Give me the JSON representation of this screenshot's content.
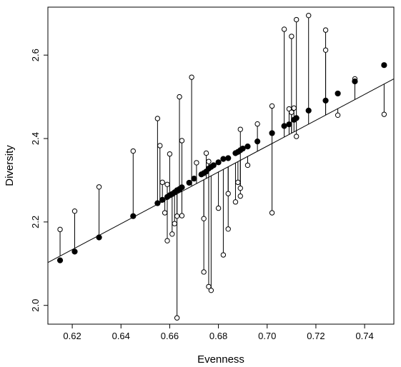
{
  "chart_data": {
    "type": "scatter",
    "xlabel": "Evenness",
    "ylabel": "Diversity",
    "xlim": [
      0.61,
      0.752
    ],
    "ylim": [
      1.955,
      2.715
    ],
    "xticks": [
      "0.62",
      "0.64",
      "0.66",
      "0.68",
      "0.70",
      "0.72",
      "0.74"
    ],
    "yticks": [
      "2.0",
      "2.2",
      "2.4",
      "2.6"
    ],
    "regression_line": {
      "intercept": 0.2115,
      "slope": 3.1005
    },
    "series": [
      {
        "marker": "filled-circle",
        "role": "fitted",
        "x": [
          0.615,
          0.621,
          0.631,
          0.645,
          0.655,
          0.657,
          0.659,
          0.66,
          0.661,
          0.662,
          0.663,
          0.664,
          0.665,
          0.668,
          0.67,
          0.673,
          0.674,
          0.675,
          0.676,
          0.677,
          0.678,
          0.68,
          0.682,
          0.684,
          0.687,
          0.688,
          0.689,
          0.69,
          0.692,
          0.696,
          0.702,
          0.707,
          0.709,
          0.711,
          0.712,
          0.717,
          0.724,
          0.729,
          0.736,
          0.748
        ],
        "y": [
          2.108,
          2.129,
          2.163,
          2.214,
          2.245,
          2.253,
          2.26,
          2.264,
          2.267,
          2.271,
          2.276,
          2.279,
          2.283,
          2.294,
          2.304,
          2.314,
          2.317,
          2.321,
          2.328,
          2.332,
          2.336,
          2.343,
          2.351,
          2.353,
          2.365,
          2.368,
          2.372,
          2.376,
          2.381,
          2.393,
          2.413,
          2.43,
          2.434,
          2.445,
          2.449,
          2.467,
          2.491,
          2.508,
          2.537,
          2.576
        ]
      },
      {
        "marker": "open-circle",
        "role": "observed",
        "x": [
          0.615,
          0.621,
          0.631,
          0.645,
          0.655,
          0.656,
          0.657,
          0.658,
          0.659,
          0.659,
          0.66,
          0.661,
          0.662,
          0.663,
          0.663,
          0.664,
          0.665,
          0.665,
          0.669,
          0.671,
          0.674,
          0.674,
          0.675,
          0.676,
          0.676,
          0.677,
          0.68,
          0.682,
          0.684,
          0.684,
          0.687,
          0.688,
          0.689,
          0.689,
          0.689,
          0.692,
          0.696,
          0.702,
          0.702,
          0.707,
          0.709,
          0.71,
          0.71,
          0.711,
          0.712,
          0.712,
          0.717,
          0.724,
          0.724,
          0.729,
          0.736,
          0.748
        ],
        "y": [
          2.182,
          2.226,
          2.284,
          2.37,
          2.448,
          2.383,
          2.295,
          2.222,
          2.29,
          2.155,
          2.363,
          2.171,
          2.196,
          1.97,
          2.214,
          2.5,
          2.395,
          2.215,
          2.547,
          2.342,
          2.208,
          2.08,
          2.365,
          2.045,
          2.345,
          2.036,
          2.233,
          2.121,
          2.183,
          2.268,
          2.248,
          2.295,
          2.422,
          2.281,
          2.262,
          2.336,
          2.435,
          2.478,
          2.222,
          2.662,
          2.471,
          2.463,
          2.645,
          2.473,
          2.405,
          2.685,
          2.695,
          2.66,
          2.612,
          2.456,
          2.543,
          2.458
        ]
      }
    ]
  }
}
